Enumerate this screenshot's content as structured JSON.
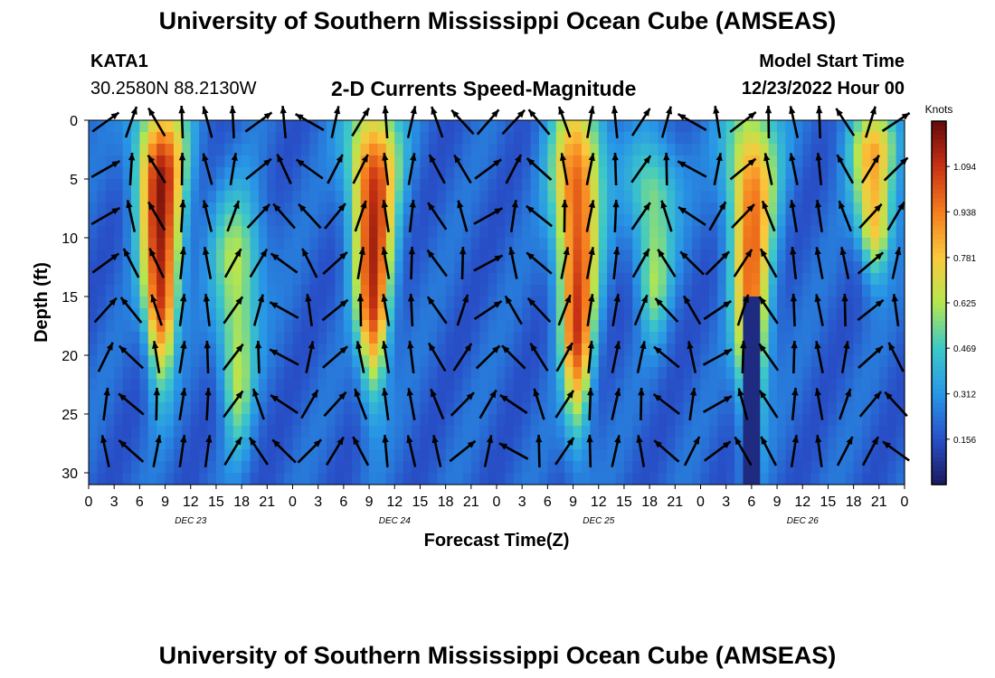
{
  "header": {
    "title": "University of Southern Mississippi Ocean Cube (AMSEAS)",
    "station_id": "KATA1",
    "coordinates": "30.2580N  88.2130W",
    "subtitle": "2-D Currents Speed-Magnitude",
    "model_start_label": "Model Start Time",
    "model_start_value": "12/23/2022 Hour 00",
    "footer_title": "University of Southern Mississippi Ocean Cube (AMSEAS)"
  },
  "chart_data": {
    "type": "heatmap",
    "title": "2-D Currents Speed-Magnitude",
    "xlabel": "Forecast Time(Z)",
    "ylabel": "Depth (ft)",
    "xlim": [
      0,
      96
    ],
    "ylim": [
      31,
      0
    ],
    "x_tick_hours": [
      0,
      3,
      6,
      9,
      12,
      15,
      18,
      21,
      24,
      27,
      30,
      33,
      36,
      39,
      42,
      45,
      48,
      51,
      54,
      57,
      60,
      63,
      66,
      69,
      72,
      75,
      78,
      81,
      84,
      87,
      90,
      93,
      96
    ],
    "x_tick_labels": [
      "0",
      "3",
      "6",
      "9",
      "12",
      "15",
      "18",
      "21",
      "0",
      "3",
      "6",
      "9",
      "12",
      "15",
      "18",
      "21",
      "0",
      "3",
      "6",
      "9",
      "12",
      "15",
      "18",
      "21",
      "0",
      "3",
      "6",
      "9",
      "12",
      "15",
      "18",
      "21",
      "0"
    ],
    "y_ticks": [
      0,
      5,
      10,
      15,
      20,
      25,
      30
    ],
    "y_tick_labels": [
      "0",
      "5",
      "10",
      "15",
      "20",
      "25",
      "30"
    ],
    "day_labels": [
      {
        "hour": 12,
        "label": "DEC 23"
      },
      {
        "hour": 36,
        "label": "DEC 24"
      },
      {
        "hour": 60,
        "label": "DEC 25"
      },
      {
        "hour": 84,
        "label": "DEC 26"
      }
    ],
    "colorbar": {
      "title": "Knots",
      "min": 0.0,
      "max": 1.25,
      "ticks": [
        0.156,
        0.312,
        0.469,
        0.625,
        0.781,
        0.938,
        1.094
      ],
      "tick_labels": [
        "0.156",
        "0.312",
        "0.469",
        "0.625",
        "0.781",
        "0.938",
        "1.094"
      ],
      "colors": [
        "#1a1a5e",
        "#2850c8",
        "#2896e6",
        "#3cc8c8",
        "#b4e650",
        "#fac83c",
        "#f57d1e",
        "#c83214",
        "#640a0a"
      ]
    },
    "speed_peaks": [
      {
        "hour": 8.5,
        "depth_top": 0,
        "depth_bottom": 20,
        "peak_knots": 1.15
      },
      {
        "hour": 17.5,
        "depth_top": 8,
        "depth_bottom": 26,
        "peak_knots": 0.65
      },
      {
        "hour": 33.5,
        "depth_top": 0,
        "depth_bottom": 21,
        "peak_knots": 1.1
      },
      {
        "hour": 57.5,
        "depth_top": 0,
        "depth_bottom": 24,
        "peak_knots": 1.05
      },
      {
        "hour": 66.5,
        "depth_top": 3,
        "depth_bottom": 17,
        "peak_knots": 0.6
      },
      {
        "hour": 78,
        "depth_top": 0,
        "depth_bottom": 24,
        "peak_knots": 0.95
      },
      {
        "hour": 92.5,
        "depth_top": 0,
        "depth_bottom": 12,
        "peak_knots": 0.85
      }
    ],
    "vector_depths": [
      0,
      4,
      8,
      12,
      16,
      20,
      24,
      28
    ],
    "vector_hours": [
      2,
      5,
      8,
      11,
      14,
      17,
      20,
      23,
      26,
      29,
      32,
      35,
      38,
      41,
      44,
      47,
      50,
      53,
      56,
      59,
      62,
      65,
      68,
      71,
      74,
      77,
      80,
      83,
      86,
      89,
      92,
      95
    ]
  }
}
